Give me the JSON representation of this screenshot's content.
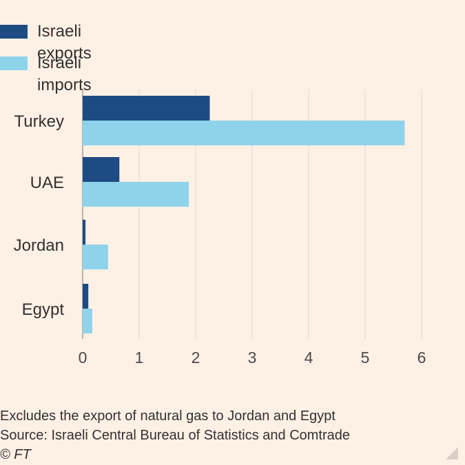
{
  "legend": [
    {
      "label": "Israeli exports",
      "color": "#1e4b82"
    },
    {
      "label": "Israeli imports",
      "color": "#8fd3ea"
    }
  ],
  "chart_data": {
    "type": "bar",
    "orientation": "horizontal",
    "categories": [
      "Turkey",
      "UAE",
      "Jordan",
      "Egypt"
    ],
    "series": [
      {
        "name": "Israeli exports",
        "color": "#1e4b82",
        "values": [
          2.25,
          0.65,
          0.05,
          0.1
        ]
      },
      {
        "name": "Israeli imports",
        "color": "#8fd3ea",
        "values": [
          5.7,
          1.88,
          0.45,
          0.17
        ]
      }
    ],
    "x_ticks": [
      "0",
      "1",
      "2",
      "3",
      "4",
      "5",
      "6"
    ],
    "xlim": [
      0,
      6
    ],
    "grid": true,
    "legend_position": "top-left",
    "title": "",
    "xlabel": "",
    "ylabel": ""
  },
  "notes": {
    "line1": "Excludes the export of natural gas to Jordan and Egypt",
    "line2": "Source: Israeli Central Bureau of Statistics and Comtrade",
    "copyright": "© FT"
  }
}
